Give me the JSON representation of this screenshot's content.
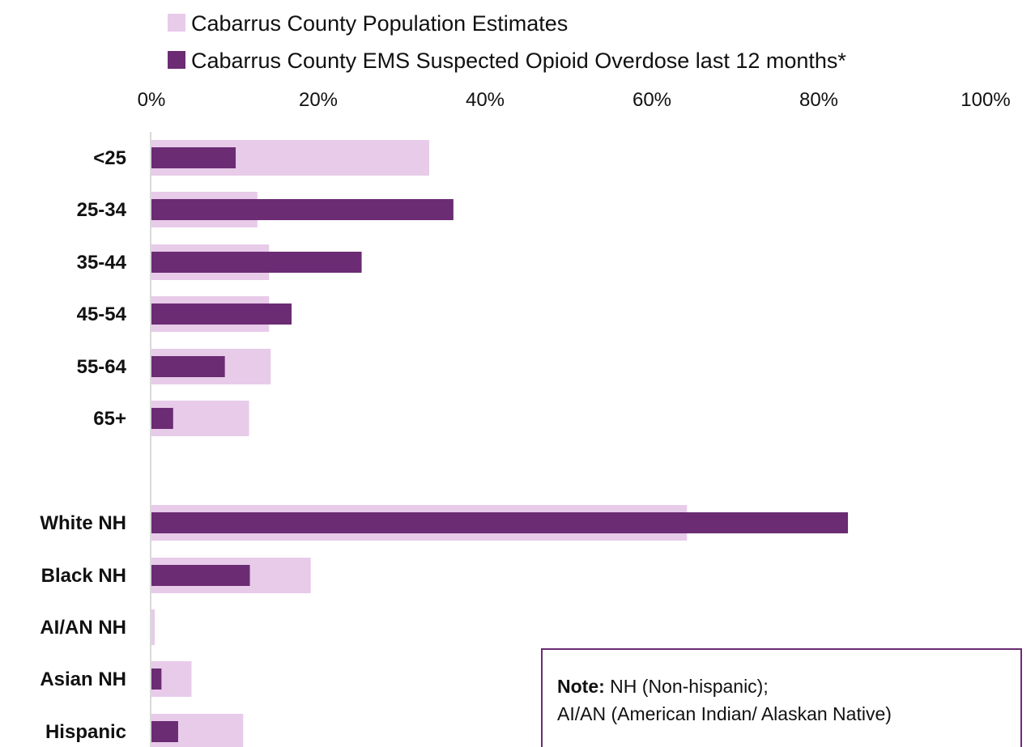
{
  "chart_data": {
    "type": "bar",
    "orientation": "horizontal",
    "categories": [
      "<25",
      "25-34",
      "35-44",
      "45-54",
      "55-64",
      "65+",
      "White NH",
      "Black NH",
      "AI/AN NH",
      "Asian NH",
      "Hispanic"
    ],
    "groups": [
      {
        "categories": [
          "<25",
          "25-34",
          "35-44",
          "45-54",
          "55-64",
          "65+"
        ]
      },
      {
        "categories": [
          "White NH",
          "Black NH",
          "AI/AN NH",
          "Asian NH",
          "Hispanic"
        ]
      }
    ],
    "series": [
      {
        "name": "Cabarrus County Population Estimates",
        "color": "#e7cbe9",
        "values": [
          33.3,
          12.7,
          14.1,
          14.1,
          14.3,
          11.7,
          64.2,
          19.1,
          0.4,
          4.8,
          11.0
        ]
      },
      {
        "name": "Cabarrus County EMS Suspected Opioid Overdose last 12 months*",
        "color": "#6b2c73",
        "values": [
          10.1,
          36.2,
          25.2,
          16.8,
          8.8,
          2.6,
          83.5,
          11.8,
          0,
          1.2,
          3.2
        ]
      }
    ],
    "xlim": [
      0,
      100
    ],
    "xticks": [
      "0%",
      "20%",
      "40%",
      "60%",
      "80%",
      "100%"
    ],
    "xaxis_position": "top",
    "legend_position": "top",
    "grid": false
  },
  "note": {
    "bold": "Note:",
    "line1": " NH (Non-hispanic);",
    "line2": "AI/AN (American Indian/ Alaskan Native)"
  }
}
